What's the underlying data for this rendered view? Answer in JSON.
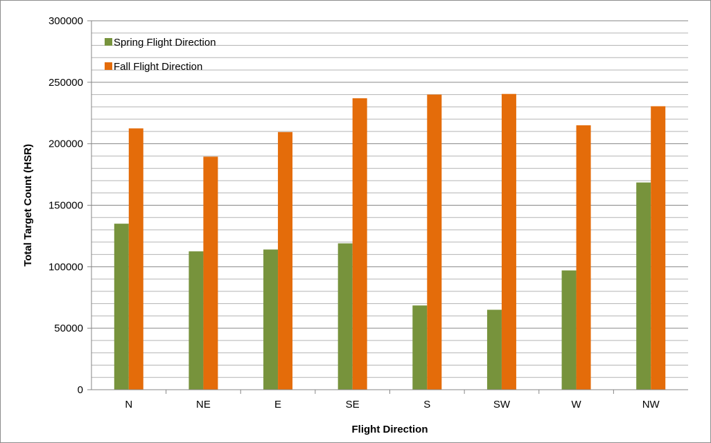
{
  "chart_data": {
    "type": "bar",
    "title": "",
    "xlabel": "Flight Direction",
    "ylabel": "Total Target Count (HSR)",
    "ylim": [
      0,
      300000
    ],
    "yticks": [
      "0",
      "50000",
      "100000",
      "150000",
      "200000",
      "250000",
      "300000"
    ],
    "grid": true,
    "legend_position": "top-left",
    "categories": [
      "N",
      "NE",
      "E",
      "SE",
      "S",
      "SW",
      "W",
      "NW"
    ],
    "series": [
      {
        "name": "Spring  Flight Direction",
        "color": "#77933c",
        "values": [
          135000,
          112500,
          114000,
          119000,
          68500,
          65000,
          97000,
          168500
        ]
      },
      {
        "name": "Fall Flight Direction",
        "color": "#e46c0a",
        "values": [
          212500,
          189500,
          209500,
          237000,
          240000,
          240500,
          215000,
          230500
        ]
      }
    ]
  }
}
